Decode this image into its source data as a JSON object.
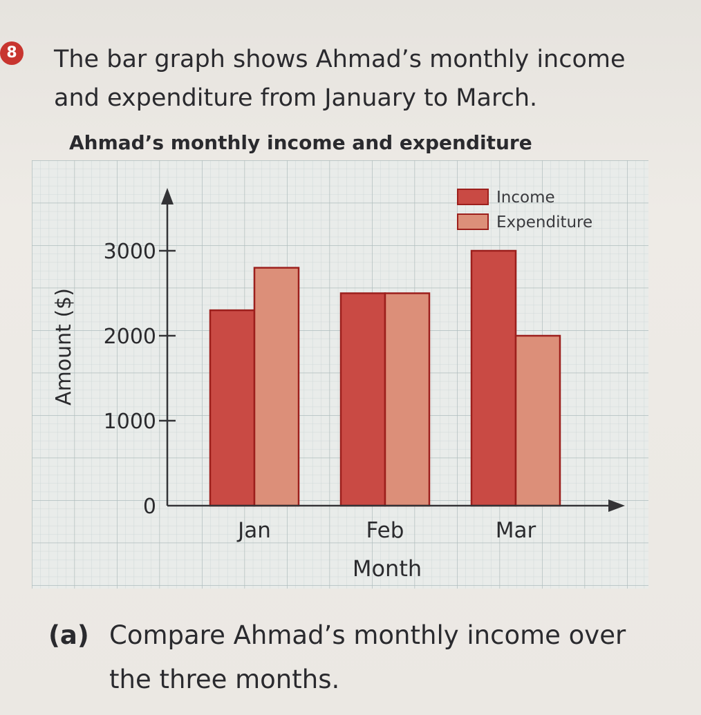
{
  "question": {
    "number": "8",
    "line1": "The bar graph shows Ahmad’s monthly income",
    "line2": "and expenditure from January to March."
  },
  "chart_data": {
    "type": "bar",
    "title": "Ahmad’s monthly income and expenditure",
    "xlabel": "Month",
    "ylabel": "Amount ($)",
    "categories": [
      "Jan",
      "Feb",
      "Mar"
    ],
    "series": [
      {
        "name": "Income",
        "values": [
          2300,
          2500,
          3000
        ],
        "color": "#c94a44"
      },
      {
        "name": "Expenditure",
        "values": [
          2800,
          2500,
          2000
        ],
        "color": "#dc8f79"
      }
    ],
    "yticks": [
      0,
      1000,
      2000,
      3000
    ],
    "ytick_labels": [
      "0",
      "1000",
      "2000",
      "3000"
    ],
    "ylim": [
      0,
      3500
    ],
    "grid": true,
    "legend_position": "top-right",
    "colors": {
      "grid_minor": "#c9d3d3",
      "grid_major": "#aebcbc",
      "axis": "#333336",
      "bar_edge": "#9c1f1c",
      "grid_background": "#e9ecea"
    }
  },
  "sub_question": {
    "label": "(a)",
    "line1": "Compare Ahmad’s monthly income over",
    "line2": "the three months."
  }
}
